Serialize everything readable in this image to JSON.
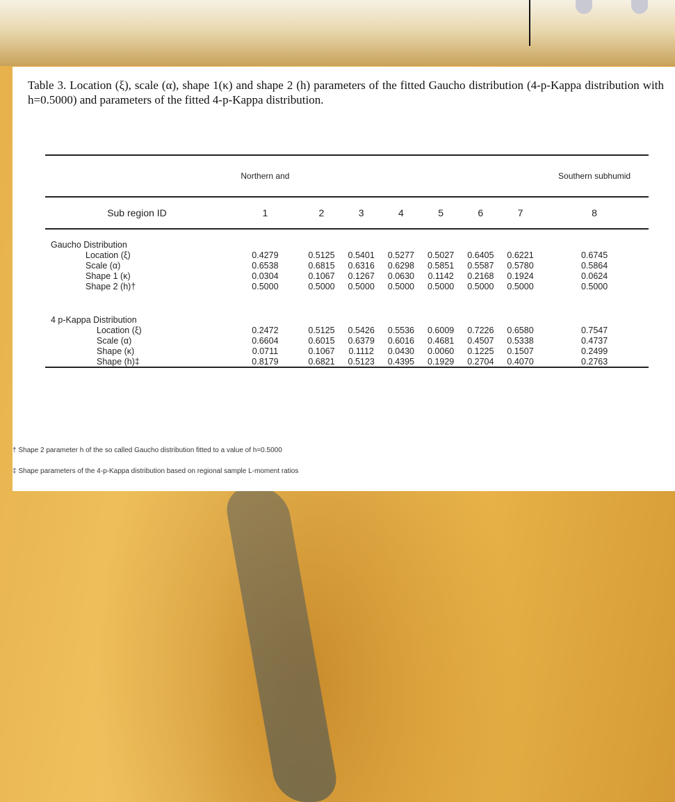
{
  "caption": "Table 3. Location (ξ), scale (α), shape 1(κ) and shape 2 (h) parameters of the fitted Gaucho distribution (4-p-Kappa distribution with h=0.5000) and parameters of the fitted 4-p-Kappa distribution.",
  "table": {
    "group_headers": [
      "Northern and",
      "Southern subhumid"
    ],
    "id_label": "Sub region ID",
    "ids": [
      "1",
      "2",
      "3",
      "4",
      "5",
      "6",
      "7",
      "8"
    ],
    "sections": [
      {
        "title": "Gaucho Distribution",
        "rows": [
          {
            "label": "Location (ξ)",
            "values": [
              "0.4279",
              "0.5125",
              "0.5401",
              "0.5277",
              "0.5027",
              "0.6405",
              "0.6221",
              "0.6745"
            ]
          },
          {
            "label": "Scale (α)",
            "values": [
              "0.6538",
              "0.6815",
              "0.6316",
              "0.6298",
              "0.5851",
              "0.5587",
              "0.5780",
              "0.5864"
            ]
          },
          {
            "label": "Shape 1 (κ)",
            "values": [
              "0.0304",
              "0.1067",
              "0.1267",
              "0.0630",
              "0.1142",
              "0.2168",
              "0.1924",
              "0.0624"
            ]
          },
          {
            "label": "Shape 2 (h)†",
            "values": [
              "0.5000",
              "0.5000",
              "0.5000",
              "0.5000",
              "0.5000",
              "0.5000",
              "0.5000",
              "0.5000"
            ]
          }
        ]
      },
      {
        "title": "4 p-Kappa Distribution",
        "rows": [
          {
            "label": "Location (ξ)",
            "values": [
              "0.2472",
              "0.5125",
              "0.5426",
              "0.5536",
              "0.6009",
              "0.7226",
              "0.6580",
              "0.7547"
            ]
          },
          {
            "label": "Scale (α)",
            "values": [
              "0.6604",
              "0.6015",
              "0.6379",
              "0.6016",
              "0.4681",
              "0.4507",
              "0.5338",
              "0.4737"
            ]
          },
          {
            "label": "Shape (κ)",
            "values": [
              "0.0711",
              "0.1067",
              "0.1112",
              "0.0430",
              "0.0060",
              "0.1225",
              "0.1507",
              "0.2499"
            ]
          },
          {
            "label": "Shape (h)‡",
            "values": [
              "0.8179",
              "0.6821",
              "0.5123",
              "0.4395",
              "0.1929",
              "0.2704",
              "0.4070",
              "0.2763"
            ]
          }
        ]
      }
    ]
  },
  "footnotes": [
    "† Shape 2 parameter h of the so called Gaucho distribution fitted to a value of h=0.5000",
    "‡ Shape parameters of the 4-p-Kappa distribution based on regional sample L-moment ratios"
  ]
}
